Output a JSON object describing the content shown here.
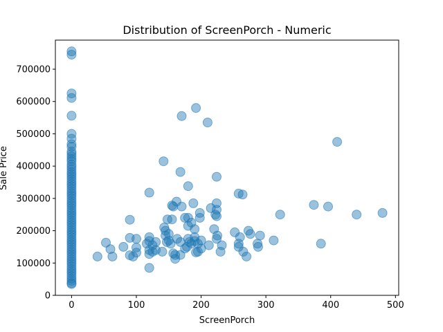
{
  "chart_data": {
    "type": "scatter",
    "title": "Distribution of ScreenPorch - Numeric",
    "xlabel": "ScreenPorch",
    "ylabel": "Sale Price",
    "xlim": [
      -25,
      505
    ],
    "ylim": [
      0,
      790000
    ],
    "x_ticks": [
      0,
      100,
      200,
      300,
      400,
      500
    ],
    "y_ticks": [
      0,
      100000,
      200000,
      300000,
      400000,
      500000,
      600000,
      700000
    ],
    "grid": false,
    "legend": "none",
    "color": "#1f77b4",
    "series": [
      {
        "points": [
          [
            0,
            755000
          ],
          [
            0,
            745000
          ],
          [
            0,
            625000
          ],
          [
            0,
            611000
          ],
          [
            0,
            556000
          ],
          [
            0,
            500000
          ],
          [
            0,
            485000
          ],
          [
            0,
            468000
          ],
          [
            0,
            460000
          ],
          [
            0,
            445000
          ],
          [
            0,
            438000
          ],
          [
            0,
            430000
          ],
          [
            0,
            422000
          ],
          [
            0,
            415000
          ],
          [
            0,
            405000
          ],
          [
            0,
            398000
          ],
          [
            0,
            390000
          ],
          [
            0,
            382000
          ],
          [
            0,
            375000
          ],
          [
            0,
            368000
          ],
          [
            0,
            360000
          ],
          [
            0,
            352000
          ],
          [
            0,
            345000
          ],
          [
            0,
            338000
          ],
          [
            0,
            330000
          ],
          [
            0,
            322000
          ],
          [
            0,
            315000
          ],
          [
            0,
            308000
          ],
          [
            0,
            300000
          ],
          [
            0,
            292000
          ],
          [
            0,
            285000
          ],
          [
            0,
            278000
          ],
          [
            0,
            270000
          ],
          [
            0,
            262000
          ],
          [
            0,
            255000
          ],
          [
            0,
            248000
          ],
          [
            0,
            240000
          ],
          [
            0,
            232000
          ],
          [
            0,
            225000
          ],
          [
            0,
            218000
          ],
          [
            0,
            210000
          ],
          [
            0,
            202000
          ],
          [
            0,
            195000
          ],
          [
            0,
            188000
          ],
          [
            0,
            180000
          ],
          [
            0,
            172000
          ],
          [
            0,
            165000
          ],
          [
            0,
            158000
          ],
          [
            0,
            150000
          ],
          [
            0,
            142000
          ],
          [
            0,
            135000
          ],
          [
            0,
            128000
          ],
          [
            0,
            120000
          ],
          [
            0,
            112000
          ],
          [
            0,
            105000
          ],
          [
            0,
            98000
          ],
          [
            0,
            90000
          ],
          [
            0,
            82000
          ],
          [
            0,
            75000
          ],
          [
            0,
            68000
          ],
          [
            0,
            60000
          ],
          [
            0,
            52000
          ],
          [
            0,
            45000
          ],
          [
            0,
            38000
          ],
          [
            0,
            35000
          ],
          [
            40,
            120000
          ],
          [
            53,
            163000
          ],
          [
            60,
            143000
          ],
          [
            63,
            120000
          ],
          [
            80,
            150000
          ],
          [
            90,
            234000
          ],
          [
            90,
            178000
          ],
          [
            90,
            124000
          ],
          [
            95,
            120000
          ],
          [
            100,
            175000
          ],
          [
            100,
            148000
          ],
          [
            100,
            132000
          ],
          [
            116,
            160000
          ],
          [
            120,
            318000
          ],
          [
            120,
            180000
          ],
          [
            120,
            168000
          ],
          [
            120,
            140000
          ],
          [
            120,
            128000
          ],
          [
            120,
            85000
          ],
          [
            125,
            155000
          ],
          [
            125,
            135000
          ],
          [
            130,
            165000
          ],
          [
            130,
            140000
          ],
          [
            140,
            135000
          ],
          [
            142,
            415000
          ],
          [
            143,
            210000
          ],
          [
            145,
            200000
          ],
          [
            145,
            185000
          ],
          [
            147,
            165000
          ],
          [
            148,
            235000
          ],
          [
            150,
            190000
          ],
          [
            150,
            170000
          ],
          [
            153,
            160000
          ],
          [
            155,
            278000
          ],
          [
            155,
            235000
          ],
          [
            157,
            275000
          ],
          [
            157,
            130000
          ],
          [
            160,
            125000
          ],
          [
            160,
            113000
          ],
          [
            162,
            290000
          ],
          [
            163,
            175000
          ],
          [
            168,
            382000
          ],
          [
            168,
            165000
          ],
          [
            168,
            125000
          ],
          [
            170,
            555000
          ],
          [
            170,
            275000
          ],
          [
            175,
            240000
          ],
          [
            175,
            145000
          ],
          [
            178,
            150000
          ],
          [
            180,
            338000
          ],
          [
            180,
            240000
          ],
          [
            180,
            215000
          ],
          [
            180,
            175000
          ],
          [
            182,
            165000
          ],
          [
            185,
            160000
          ],
          [
            185,
            225000
          ],
          [
            188,
            285000
          ],
          [
            190,
            205000
          ],
          [
            190,
            180000
          ],
          [
            190,
            168000
          ],
          [
            192,
            580000
          ],
          [
            192,
            133000
          ],
          [
            195,
            160000
          ],
          [
            195,
            135000
          ],
          [
            198,
            240000
          ],
          [
            198,
            255000
          ],
          [
            200,
            170000
          ],
          [
            200,
            145000
          ],
          [
            210,
            535000
          ],
          [
            212,
            155000
          ],
          [
            215,
            270000
          ],
          [
            220,
            205000
          ],
          [
            222,
            250000
          ],
          [
            224,
            367000
          ],
          [
            224,
            285000
          ],
          [
            224,
            245000
          ],
          [
            224,
            265000
          ],
          [
            224,
            175000
          ],
          [
            225,
            185000
          ],
          [
            230,
            135000
          ],
          [
            232,
            155000
          ],
          [
            252,
            195000
          ],
          [
            258,
            315000
          ],
          [
            258,
            160000
          ],
          [
            258,
            150000
          ],
          [
            260,
            180000
          ],
          [
            264,
            312000
          ],
          [
            265,
            135000
          ],
          [
            270,
            120000
          ],
          [
            273,
            200000
          ],
          [
            276,
            190000
          ],
          [
            287,
            160000
          ],
          [
            288,
            150000
          ],
          [
            291,
            185000
          ],
          [
            312,
            170000
          ],
          [
            322,
            250000
          ],
          [
            374,
            280000
          ],
          [
            385,
            160000
          ],
          [
            396,
            275000
          ],
          [
            410,
            475000
          ],
          [
            440,
            250000
          ],
          [
            480,
            255000
          ]
        ]
      }
    ]
  }
}
